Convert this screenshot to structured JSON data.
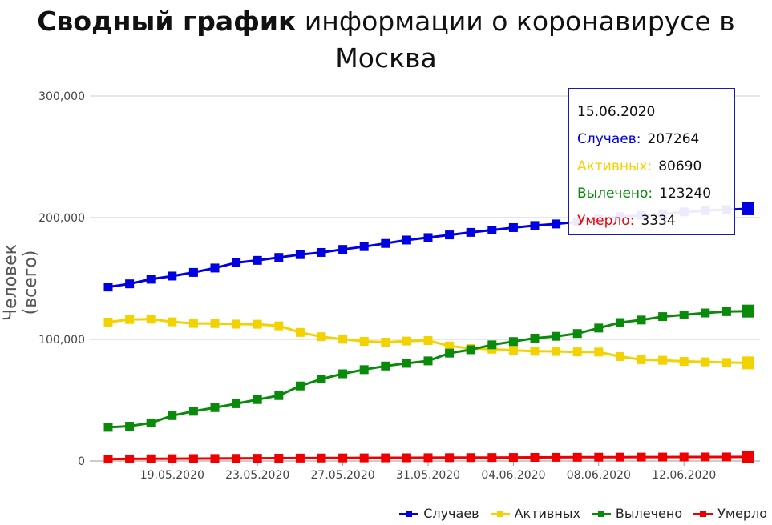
{
  "title": {
    "bold": "Сводный график",
    "rest": " информации о коронавирусе в",
    "line2": "Москва"
  },
  "chart_data": {
    "type": "line",
    "title": "Сводный график информации о коронавирусе в Москва",
    "ylabel": "Человек (всего)",
    "xlabel": "",
    "ylim": [
      0,
      300000
    ],
    "yticks": [
      0,
      100000,
      200000,
      300000
    ],
    "ytick_labels": [
      "0",
      "100,000",
      "200,000",
      "300,000"
    ],
    "x": [
      "16.05.2020",
      "17.05.2020",
      "18.05.2020",
      "19.05.2020",
      "20.05.2020",
      "21.05.2020",
      "22.05.2020",
      "23.05.2020",
      "24.05.2020",
      "25.05.2020",
      "26.05.2020",
      "27.05.2020",
      "28.05.2020",
      "29.05.2020",
      "30.05.2020",
      "31.05.2020",
      "01.06.2020",
      "02.06.2020",
      "03.06.2020",
      "04.06.2020",
      "05.06.2020",
      "06.06.2020",
      "07.06.2020",
      "08.06.2020",
      "09.06.2020",
      "10.06.2020",
      "11.06.2020",
      "12.06.2020",
      "13.06.2020",
      "14.06.2020",
      "15.06.2020"
    ],
    "xtick_labels": [
      "19.05.2020",
      "23.05.2020",
      "27.05.2020",
      "31.05.2020",
      "04.06.2020",
      "08.06.2020",
      "12.06.2020"
    ],
    "grid": true,
    "legend": "bottom-right",
    "series": [
      {
        "name": "Случаев",
        "color": "#0000e0",
        "values": [
          143000,
          145600,
          149400,
          152000,
          155000,
          158600,
          163000,
          164900,
          167300,
          169600,
          171400,
          173900,
          176200,
          178800,
          181600,
          183600,
          185800,
          187900,
          189800,
          191800,
          193500,
          194800,
          196600,
          198800,
          200800,
          201800,
          203000,
          204700,
          205800,
          206600,
          207264
        ]
      },
      {
        "name": "Активных",
        "color": "#f2d200",
        "values": [
          114200,
          116300,
          116600,
          114400,
          113100,
          113000,
          112500,
          112400,
          111100,
          105700,
          102200,
          100100,
          98400,
          97700,
          98600,
          99000,
          94600,
          92500,
          91900,
          91000,
          90300,
          90100,
          89700,
          89600,
          85900,
          83300,
          82800,
          81900,
          81500,
          81000,
          80690
        ]
      },
      {
        "name": "Вылечено",
        "color": "#0a8a0a",
        "values": [
          27700,
          28600,
          31300,
          37300,
          40900,
          43900,
          47100,
          50500,
          53800,
          61700,
          67400,
          71700,
          75100,
          78100,
          80300,
          82300,
          88700,
          91500,
          95500,
          98200,
          101000,
          102500,
          104800,
          109300,
          113800,
          115900,
          118700,
          120100,
          121700,
          122800,
          123240
        ]
      },
      {
        "name": "Умерло",
        "color": "#ee0000",
        "values": [
          1600,
          1700,
          1800,
          1900,
          2000,
          2060,
          2130,
          2220,
          2300,
          2390,
          2470,
          2520,
          2560,
          2600,
          2640,
          2700,
          2760,
          2800,
          2860,
          2920,
          2970,
          3020,
          3060,
          3110,
          3160,
          3200,
          3230,
          3270,
          3300,
          3320,
          3334
        ]
      }
    ]
  },
  "tooltip": {
    "date": "15.06.2020",
    "rows": [
      {
        "label": "Случаев:",
        "value": "207264",
        "color": "#0000e0"
      },
      {
        "label": "Активных:",
        "value": "80690",
        "color": "#f2d200"
      },
      {
        "label": "Вылечено:",
        "value": "123240",
        "color": "#0a8a0a"
      },
      {
        "label": "Умерло:",
        "value": "3334",
        "color": "#ee0000"
      }
    ]
  },
  "legend": [
    {
      "label": "Случаев",
      "color": "#0000e0"
    },
    {
      "label": "Активных",
      "color": "#f2d200"
    },
    {
      "label": "Вылечено",
      "color": "#0a8a0a"
    },
    {
      "label": "Умерло",
      "color": "#ee0000"
    }
  ]
}
